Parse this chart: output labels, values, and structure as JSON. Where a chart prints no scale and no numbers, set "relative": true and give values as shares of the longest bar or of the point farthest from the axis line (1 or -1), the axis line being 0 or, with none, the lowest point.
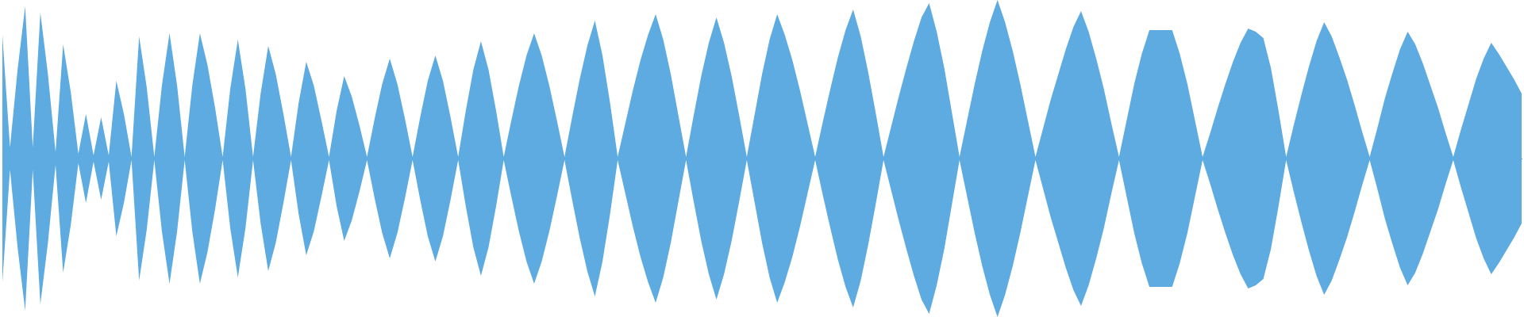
{
  "chart_data": {
    "type": "area",
    "relative": true,
    "grid": false,
    "legend": false,
    "categories": [
      null,
      null,
      null,
      null,
      null,
      null,
      null,
      null,
      null,
      null,
      null,
      null,
      null,
      null,
      null,
      null,
      null,
      null,
      null,
      null,
      null,
      null,
      null,
      null,
      null,
      null,
      null,
      null,
      null,
      null,
      null,
      null,
      null,
      null,
      null,
      null,
      null,
      null,
      null,
      null,
      null,
      null,
      null,
      null,
      null,
      null,
      null,
      null,
      null,
      null,
      null,
      null,
      null,
      null,
      null,
      null,
      null,
      null,
      null,
      null,
      null,
      null,
      null,
      null,
      null,
      null,
      null,
      null,
      null,
      null,
      null,
      null,
      null,
      null,
      null,
      null,
      null,
      null,
      null,
      null,
      null,
      null,
      null,
      null,
      null,
      null,
      null,
      null,
      null,
      null,
      null,
      null,
      null,
      null,
      null,
      null,
      null,
      null,
      null,
      null,
      null,
      null,
      null,
      null,
      null,
      null,
      null,
      null,
      null,
      null,
      null,
      null,
      null,
      null,
      null,
      null,
      null,
      null,
      null,
      null,
      null,
      null,
      null,
      null,
      null,
      null,
      null,
      null,
      null,
      null,
      null,
      null,
      null,
      null,
      null,
      null,
      null,
      null,
      null,
      null,
      null,
      null,
      null,
      null,
      null,
      null,
      null,
      null,
      null,
      null,
      null,
      null,
      null,
      null,
      null,
      null,
      null,
      null,
      null,
      null,
      null,
      null,
      null,
      null,
      null,
      null,
      null,
      null,
      null,
      null,
      null,
      null,
      null,
      null,
      null,
      null,
      null,
      null,
      null,
      null,
      null,
      null,
      null,
      null,
      null,
      null,
      null,
      null,
      null,
      null,
      null,
      null,
      null,
      null,
      null,
      null,
      null,
      null,
      null,
      null,
      null
    ],
    "series": [
      {
        "color": "#5dabe1",
        "values": [
          0.78,
          0.07,
          0.56,
          0.96,
          0.07,
          0.92,
          0.53,
          0.04,
          0.72,
          0.42,
          0.03,
          0.28,
          0.02,
          0.26,
          0.02,
          0.49,
          0.28,
          0.01,
          0.77,
          0.45,
          0.01,
          0.46,
          0.79,
          0.46,
          0.01,
          0.46,
          0.79,
          0.59,
          0.32,
          0.01,
          0.44,
          0.75,
          0.44,
          0.01,
          0.41,
          0.71,
          0.53,
          0.28,
          0.01,
          0.35,
          0.61,
          0.46,
          0.24,
          0.01,
          0.3,
          0.52,
          0.39,
          0.21,
          0.01,
          0.25,
          0.47,
          0.63,
          0.47,
          0.25,
          0.01,
          0.26,
          0.49,
          0.65,
          0.49,
          0.26,
          0.01,
          0.3,
          0.56,
          0.74,
          0.56,
          0.3,
          0.01,
          0.24,
          0.46,
          0.65,
          0.79,
          0.65,
          0.46,
          0.24,
          0.01,
          0.26,
          0.5,
          0.71,
          0.87,
          0.65,
          0.35,
          0.01,
          0.22,
          0.43,
          0.62,
          0.78,
          0.91,
          0.75,
          0.53,
          0.27,
          0.01,
          0.27,
          0.52,
          0.73,
          0.89,
          0.73,
          0.52,
          0.27,
          0.01,
          0.27,
          0.53,
          0.75,
          0.91,
          0.78,
          0.62,
          0.43,
          0.22,
          0.01,
          0.23,
          0.44,
          0.64,
          0.81,
          0.94,
          0.77,
          0.54,
          0.28,
          0.01,
          0.2,
          0.39,
          0.57,
          0.74,
          0.89,
          0.98,
          0.8,
          0.57,
          0.29,
          0.01,
          0.24,
          0.47,
          0.68,
          0.86,
          1,
          0.86,
          0.68,
          0.47,
          0.24,
          0.01,
          0.19,
          0.37,
          0.53,
          0.69,
          0.83,
          0.93,
          0.8,
          0.63,
          0.44,
          0.22,
          0.01,
          0.24,
          0.47,
          0.66,
          0.81,
          0.81,
          0.81,
          0.81,
          0.66,
          0.47,
          0.24,
          0.01,
          0.16,
          0.32,
          0.47,
          0.61,
          0.73,
          0.82,
          0.8,
          0.76,
          0.57,
          0.3,
          0.01,
          0.21,
          0.4,
          0.58,
          0.74,
          0.86,
          0.77,
          0.64,
          0.5,
          0.34,
          0.17,
          0.01,
          0.19,
          0.38,
          0.54,
          0.69,
          0.8,
          0.72,
          0.6,
          0.46,
          0.32,
          0.16,
          0.01,
          0.18,
          0.34,
          0.5,
          0.63,
          0.73,
          0.66,
          0.58,
          0.5,
          0.41
        ]
      },
      {
        "color": "#5dabe1",
        "values": [
          -0.78,
          -0.07,
          -0.56,
          -0.96,
          -0.07,
          -0.92,
          -0.53,
          -0.04,
          -0.72,
          -0.42,
          -0.03,
          -0.28,
          -0.02,
          -0.26,
          -0.02,
          -0.49,
          -0.28,
          -0.01,
          -0.77,
          -0.45,
          -0.01,
          -0.46,
          -0.79,
          -0.46,
          -0.01,
          -0.46,
          -0.79,
          -0.59,
          -0.32,
          -0.01,
          -0.44,
          -0.75,
          -0.44,
          -0.01,
          -0.41,
          -0.71,
          -0.53,
          -0.28,
          -0.01,
          -0.35,
          -0.61,
          -0.46,
          -0.24,
          -0.01,
          -0.3,
          -0.52,
          -0.39,
          -0.21,
          -0.01,
          -0.25,
          -0.47,
          -0.63,
          -0.47,
          -0.25,
          -0.01,
          -0.26,
          -0.49,
          -0.65,
          -0.49,
          -0.26,
          -0.01,
          -0.3,
          -0.56,
          -0.74,
          -0.56,
          -0.3,
          -0.01,
          -0.24,
          -0.46,
          -0.65,
          -0.79,
          -0.65,
          -0.46,
          -0.24,
          -0.01,
          -0.26,
          -0.5,
          -0.71,
          -0.87,
          -0.65,
          -0.35,
          -0.01,
          -0.22,
          -0.43,
          -0.62,
          -0.78,
          -0.91,
          -0.75,
          -0.53,
          -0.27,
          -0.01,
          -0.27,
          -0.52,
          -0.73,
          -0.89,
          -0.73,
          -0.52,
          -0.27,
          -0.01,
          -0.27,
          -0.53,
          -0.75,
          -0.91,
          -0.78,
          -0.62,
          -0.43,
          -0.22,
          -0.01,
          -0.23,
          -0.44,
          -0.64,
          -0.81,
          -0.94,
          -0.77,
          -0.54,
          -0.28,
          -0.01,
          -0.2,
          -0.39,
          -0.57,
          -0.74,
          -0.89,
          -0.98,
          -0.8,
          -0.57,
          -0.29,
          -0.01,
          -0.24,
          -0.47,
          -0.68,
          -0.86,
          -1,
          -0.86,
          -0.68,
          -0.47,
          -0.24,
          -0.01,
          -0.19,
          -0.37,
          -0.53,
          -0.69,
          -0.83,
          -0.93,
          -0.8,
          -0.63,
          -0.44,
          -0.22,
          -0.01,
          -0.24,
          -0.47,
          -0.66,
          -0.81,
          -0.81,
          -0.81,
          -0.81,
          -0.66,
          -0.47,
          -0.24,
          -0.01,
          -0.16,
          -0.32,
          -0.47,
          -0.61,
          -0.73,
          -0.82,
          -0.8,
          -0.76,
          -0.57,
          -0.3,
          -0.01,
          -0.21,
          -0.4,
          -0.58,
          -0.74,
          -0.86,
          -0.77,
          -0.64,
          -0.5,
          -0.34,
          -0.17,
          -0.01,
          -0.19,
          -0.38,
          -0.54,
          -0.69,
          -0.8,
          -0.72,
          -0.6,
          -0.46,
          -0.32,
          -0.16,
          -0.01,
          -0.18,
          -0.34,
          -0.5,
          -0.63,
          -0.73,
          -0.66,
          -0.58,
          -0.5,
          -0.41
        ]
      }
    ]
  }
}
